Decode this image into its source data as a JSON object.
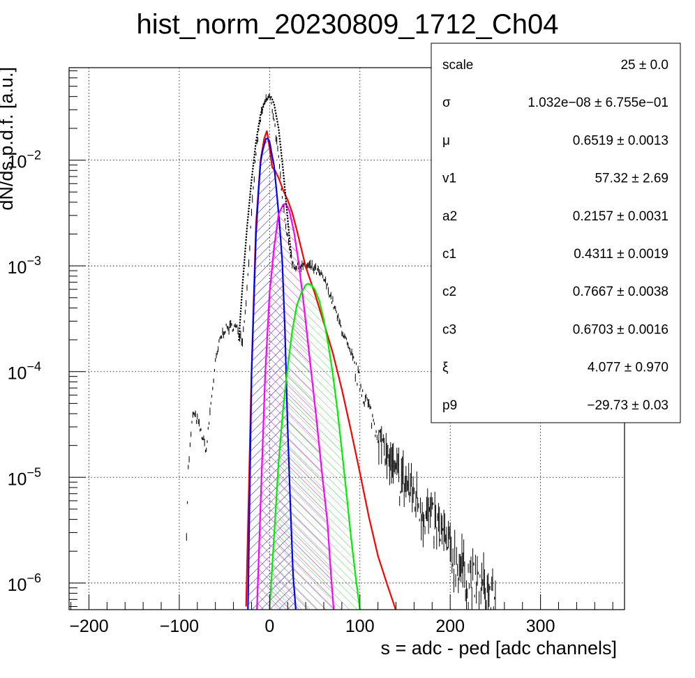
{
  "chart_data": {
    "type": "line",
    "title": "hist_norm_20230809_1712_Ch04",
    "xlabel": "s = adc - ped [adc channels]",
    "ylabel": "dN/ds p.d.f. [a.u.]",
    "x_range": [
      -222,
      393
    ],
    "y_range": [
      5.6e-07,
      0.075
    ],
    "y_scale": "log",
    "grid": true,
    "x_ticks": [
      {
        "value": -200,
        "label": "−200"
      },
      {
        "value": -100,
        "label": "−100"
      },
      {
        "value": 0,
        "label": "0"
      },
      {
        "value": 100,
        "label": "100"
      },
      {
        "value": 200,
        "label": "200"
      },
      {
        "value": 300,
        "label": "300"
      }
    ],
    "y_ticks": [
      {
        "value": 1e-06,
        "base": "10",
        "exp": "−6"
      },
      {
        "value": 1e-05,
        "base": "10",
        "exp": "−5"
      },
      {
        "value": 0.0001,
        "base": "10",
        "exp": "−4"
      },
      {
        "value": 0.001,
        "base": "10",
        "exp": "−3"
      },
      {
        "value": 0.01,
        "base": "10",
        "exp": "−2"
      }
    ],
    "histogram": {
      "color": "#000000",
      "x": [
        -92,
        -90,
        -85,
        -80,
        -75,
        -70,
        -65,
        -60,
        -55,
        -50,
        -45,
        -40,
        -35,
        -30,
        -25,
        -20,
        -15,
        -10,
        -5,
        0,
        5,
        10,
        15,
        20,
        25,
        30,
        35,
        40,
        45,
        50,
        55,
        60,
        65,
        70,
        75,
        80,
        85,
        90,
        95,
        100,
        105,
        110,
        115,
        120,
        125,
        130,
        135,
        140,
        150,
        160,
        170,
        180,
        190,
        200,
        210,
        220,
        230,
        240,
        250
      ],
      "y": [
        3e-06,
        1.2e-05,
        4e-05,
        3.5e-05,
        2.5e-05,
        1.8e-05,
        5e-05,
        0.00012,
        0.0002,
        0.00025,
        0.00026,
        0.00027,
        0.00025,
        0.0002,
        0.0006,
        0.003,
        0.012,
        0.025,
        0.036,
        0.04,
        0.025,
        0.01,
        0.004,
        0.0018,
        0.0011,
        0.00095,
        0.001,
        0.001,
        0.00098,
        0.00093,
        0.00085,
        0.00075,
        0.0006,
        0.00045,
        0.00033,
        0.00025,
        0.00019,
        0.00014,
        0.000105,
        7.8e-05,
        6e-05,
        4.5e-05,
        3.4e-05,
        2.6e-05,
        2e-05,
        1.6e-05,
        1.3e-05,
        1.1e-05,
        9e-06,
        7e-06,
        5e-06,
        4e-06,
        3e-06,
        2e-06,
        1.5e-06,
        1.2e-06,
        1e-06,
        8.5e-07,
        7e-07
      ]
    },
    "fits": [
      {
        "color": "#ff0000",
        "fill": false,
        "x": [
          -26,
          -20,
          -15,
          -10,
          -6,
          -3,
          0,
          3,
          6,
          10,
          15,
          20,
          25,
          30,
          40,
          50,
          60,
          70,
          80,
          90,
          100,
          110,
          120,
          130,
          140
        ],
        "y": [
          6e-07,
          0.0001,
          0.0025,
          0.01,
          0.016,
          0.019,
          0.013,
          0.0085,
          0.008,
          0.0068,
          0.0052,
          0.0042,
          0.0032,
          0.0022,
          0.00098,
          0.00055,
          0.00029,
          0.00015,
          6.8e-05,
          2.8e-05,
          1.1e-05,
          4.2e-06,
          1.8e-06,
          9.8e-07,
          5.5e-07
        ]
      },
      {
        "color": "#0000ff",
        "fill": true,
        "hatch": "#1a1acc",
        "x": [
          -24,
          -20,
          -15,
          -12,
          -10,
          -8,
          -6,
          -4,
          -2,
          0,
          2,
          5,
          8,
          11,
          14,
          17,
          20,
          23,
          26,
          29
        ],
        "y": [
          5.6e-07,
          9.5e-05,
          0.002,
          0.0055,
          0.0095,
          0.012,
          0.014,
          0.016,
          0.016,
          0.015,
          0.012,
          0.0088,
          0.0048,
          0.0025,
          0.0011,
          0.00025,
          3e-05,
          5.5e-06,
          1.2e-06,
          5.6e-07
        ]
      },
      {
        "color": "#ff00ff",
        "fill": true,
        "hatch": "#c020c0",
        "x": [
          -14,
          -10,
          -5,
          0,
          5,
          10,
          15,
          18,
          22,
          27,
          32,
          38,
          45,
          52,
          58,
          64,
          68,
          71
        ],
        "y": [
          5.6e-07,
          5.5e-06,
          9e-05,
          0.00055,
          0.0015,
          0.0031,
          0.0038,
          0.0039,
          0.0033,
          0.0021,
          0.0011,
          0.00042,
          0.00012,
          3.5e-05,
          1.1e-05,
          3.8e-06,
          1.2e-06,
          5.6e-07
        ]
      },
      {
        "color": "#00ee00",
        "fill": true,
        "hatch": "#55cc55",
        "x": [
          0,
          5,
          10,
          15,
          20,
          25,
          30,
          35,
          40,
          43,
          46,
          50,
          55,
          60,
          65,
          70,
          75,
          80,
          85,
          90,
          95,
          100
        ],
        "y": [
          5.6e-07,
          2.8e-06,
          1.4e-05,
          4.5e-05,
          0.00011,
          0.00024,
          0.00042,
          0.00055,
          0.00066,
          0.00068,
          0.00066,
          0.0006,
          0.00047,
          0.00031,
          0.00018,
          9.5e-05,
          4.4e-05,
          1.8e-05,
          7.2e-06,
          2.8e-06,
          1.2e-06,
          5.6e-07
        ]
      },
      {
        "color": "#000000",
        "fill": false,
        "dotted": true,
        "x": [
          -34,
          -30,
          -25,
          -20,
          -15,
          -10,
          -5,
          -2,
          0,
          2,
          5,
          10,
          15,
          20,
          24
        ],
        "y": [
          0.0002,
          0.00065,
          0.0023,
          0.0065,
          0.015,
          0.027,
          0.036,
          0.0395,
          0.04,
          0.0395,
          0.034,
          0.02,
          0.008,
          0.0028,
          0.0012
        ]
      }
    ],
    "stats": [
      {
        "name": "scale",
        "value": "25 ± 0.0"
      },
      {
        "name": "σ",
        "value": "1.032e−08 ± 6.755e−01"
      },
      {
        "name": "μ",
        "value": "0.6519 ± 0.0013"
      },
      {
        "name": "v1",
        "value": "57.32 ± 2.69"
      },
      {
        "name": "a2",
        "value": "0.2157 ± 0.0031"
      },
      {
        "name": "c1",
        "value": "0.4311 ± 0.0019"
      },
      {
        "name": "c2",
        "value": "0.7667 ± 0.0038"
      },
      {
        "name": "c3",
        "value": "0.6703 ± 0.0016"
      },
      {
        "name": "ξ",
        "value": "4.077 ± 0.970"
      },
      {
        "name": "p9",
        "value": "−29.73 ± 0.03"
      }
    ],
    "legend_placement": "top-right"
  }
}
